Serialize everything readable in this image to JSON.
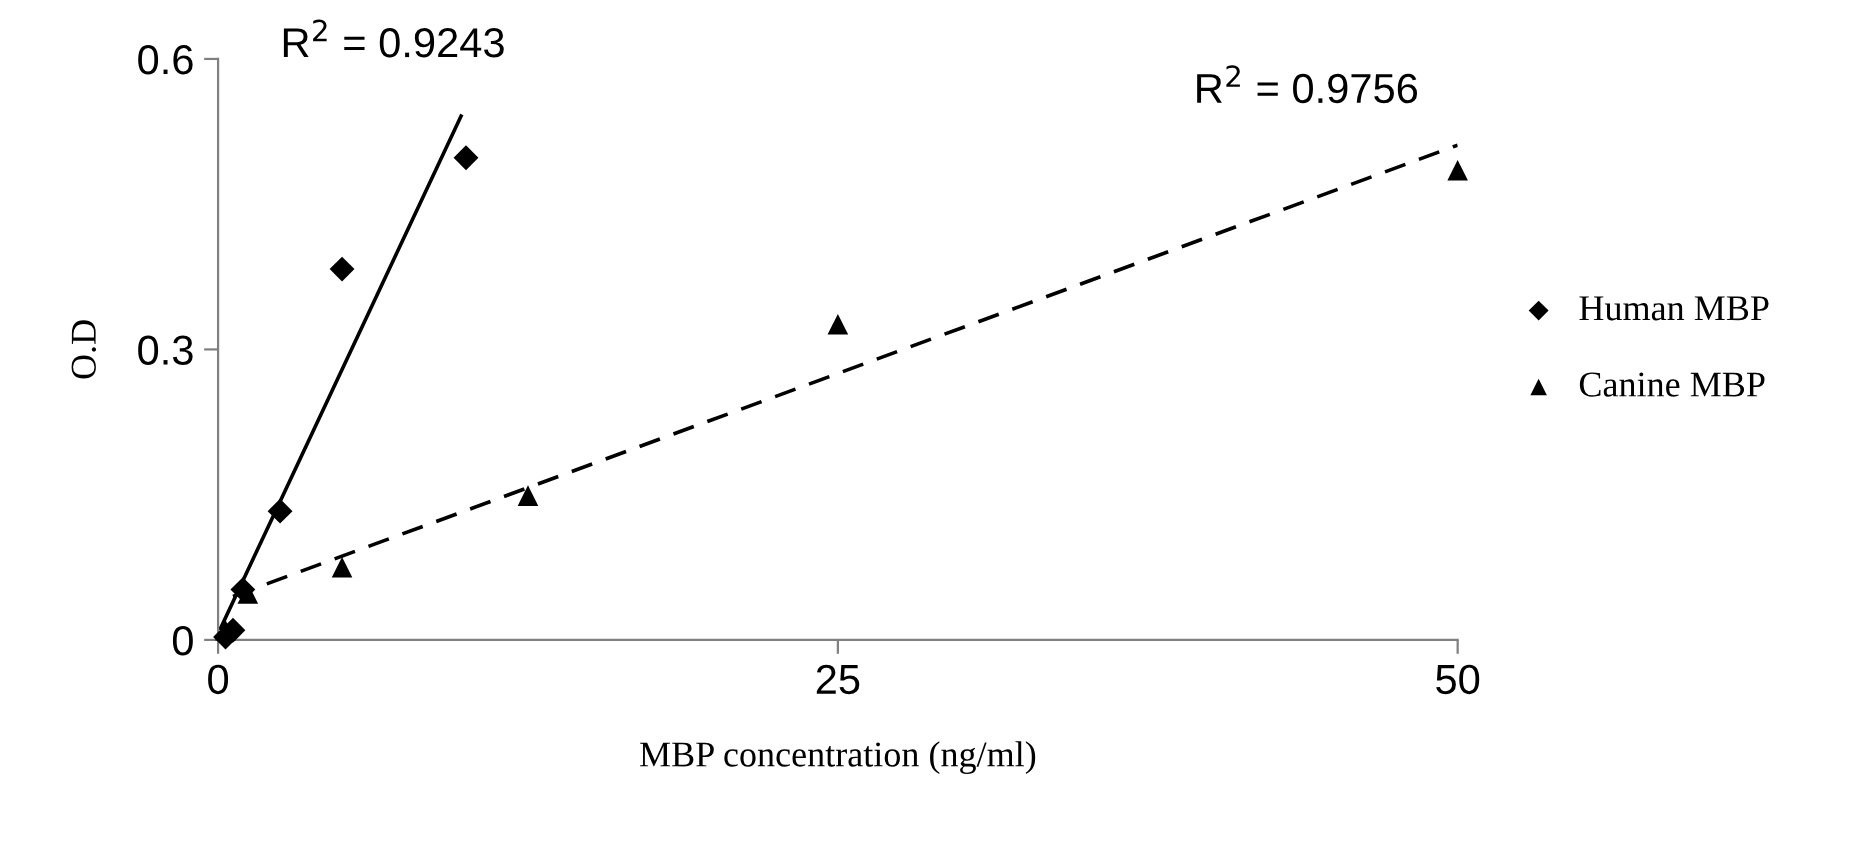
{
  "chart_data": {
    "type": "scatter",
    "xlabel": "MBP concentration (ng/ml)",
    "ylabel": "O.D",
    "xlim": [
      0,
      50
    ],
    "ylim": [
      0,
      0.6
    ],
    "xticks": [
      0,
      25,
      50
    ],
    "yticks": [
      0,
      0.3,
      0.6
    ],
    "grid": false,
    "legend": "right",
    "series": [
      {
        "name": "Human MBP",
        "color": "#000000",
        "marker": "diamond",
        "x": [
          0.3,
          0.6,
          1.0,
          2.5,
          5,
          10
        ],
        "values": [
          0.003,
          0.01,
          0.052,
          0.133,
          0.383,
          0.498
        ]
      },
      {
        "name": "Canine MBP",
        "color": "#000000",
        "marker": "triangle",
        "x": [
          0.3,
          1.2,
          5,
          12.5,
          25,
          50
        ],
        "values": [
          0.01,
          0.048,
          0.075,
          0.149,
          0.326,
          0.485
        ]
      },
      {
        "type": "line",
        "color": "#000000",
        "line_style": "solid",
        "x": [
          0.1,
          9.8
        ],
        "values": [
          0.012,
          0.541
        ]
      },
      {
        "type": "line",
        "color": "#000000",
        "line_style": "dashed",
        "x": [
          0.6,
          50
        ],
        "values": [
          0.045,
          0.511
        ]
      }
    ],
    "annotations": [
      "R$^{2}$ = 0.9243",
      "R$^{2}$ = 0.9756"
    ]
  }
}
